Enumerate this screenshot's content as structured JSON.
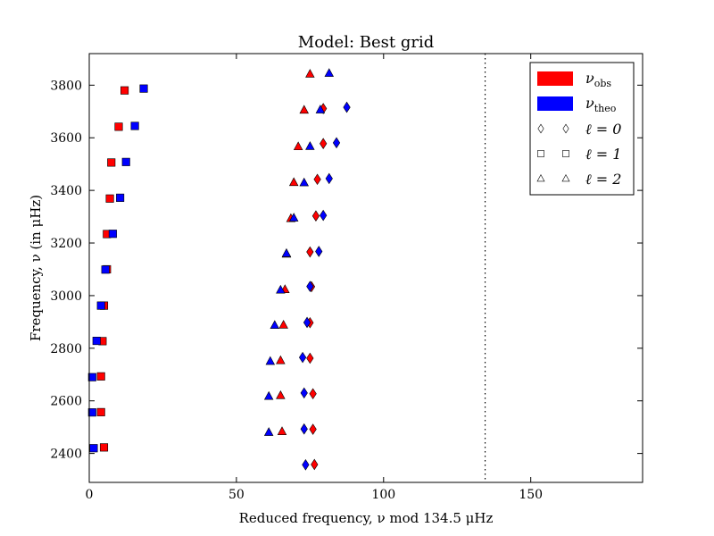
{
  "chart_data": {
    "type": "scatter",
    "title": "Model: Best grid",
    "xlabel": "Reduced frequency, ν mod 134.5 μHz",
    "ylabel": "Frequency, ν (in μHz)",
    "xlim": [
      0,
      188
    ],
    "ylim": [
      2290,
      3920
    ],
    "xticks": [
      0,
      50,
      100,
      150
    ],
    "yticks": [
      2400,
      2600,
      2800,
      3000,
      3200,
      3400,
      3600,
      3800
    ],
    "grid": false,
    "legend_placement": "top-right",
    "reference_line": {
      "x": 134.5,
      "style": "dotted"
    },
    "colors": {
      "obs": "#ff0000",
      "theo": "#0000ff"
    },
    "legend": [
      {
        "kind": "color",
        "label": "ν",
        "sub": "obs",
        "color": "#ff0000"
      },
      {
        "kind": "color",
        "label": "ν",
        "sub": "theo",
        "color": "#0000ff"
      },
      {
        "kind": "marker",
        "marker": "diamond",
        "label": "ℓ = 0"
      },
      {
        "kind": "marker",
        "marker": "square",
        "label": "ℓ = 1"
      },
      {
        "kind": "marker",
        "marker": "triangle",
        "label": "ℓ = 2"
      }
    ],
    "series": [
      {
        "source": "obs",
        "degree": 0,
        "marker": "diamond",
        "color": "#ff0000",
        "points": [
          [
            76.5,
            2358
          ],
          [
            76,
            2492
          ],
          [
            76,
            2627
          ],
          [
            75,
            2762
          ],
          [
            75,
            2897
          ],
          [
            75.5,
            3034
          ],
          [
            75,
            3166
          ],
          [
            77,
            3303
          ],
          [
            77.5,
            3442
          ],
          [
            79.5,
            3578
          ],
          [
            79.5,
            3711
          ]
        ]
      },
      {
        "source": "theo",
        "degree": 0,
        "marker": "diamond",
        "color": "#0000ff",
        "points": [
          [
            73.5,
            2357
          ],
          [
            73,
            2493
          ],
          [
            73,
            2630
          ],
          [
            72.5,
            2765
          ],
          [
            74,
            2898
          ],
          [
            75,
            3035
          ],
          [
            78,
            3168
          ],
          [
            79.5,
            3305
          ],
          [
            81.5,
            3445
          ],
          [
            84,
            3581
          ],
          [
            87.5,
            3716
          ]
        ]
      },
      {
        "source": "obs",
        "degree": 1,
        "marker": "square",
        "color": "#ff0000",
        "points": [
          [
            5,
            2423
          ],
          [
            4,
            2557
          ],
          [
            4,
            2693
          ],
          [
            4.5,
            2827
          ],
          [
            5,
            2962
          ],
          [
            6,
            3100
          ],
          [
            6,
            3234
          ],
          [
            7,
            3369
          ],
          [
            7.5,
            3506
          ],
          [
            10,
            3642
          ],
          [
            12,
            3780
          ]
        ]
      },
      {
        "source": "theo",
        "degree": 1,
        "marker": "square",
        "color": "#0000ff",
        "points": [
          [
            1.5,
            2420
          ],
          [
            1,
            2556
          ],
          [
            1,
            2690
          ],
          [
            2.5,
            2828
          ],
          [
            4,
            2962
          ],
          [
            5.5,
            3099
          ],
          [
            8,
            3235
          ],
          [
            10.5,
            3372
          ],
          [
            12.5,
            3508
          ],
          [
            15.5,
            3645
          ],
          [
            18.5,
            3787
          ]
        ]
      },
      {
        "source": "obs",
        "degree": 2,
        "marker": "triangle",
        "color": "#ff0000",
        "points": [
          [
            65.5,
            2483
          ],
          [
            65,
            2620
          ],
          [
            65,
            2753
          ],
          [
            66,
            2888
          ],
          [
            66.5,
            3023
          ],
          [
            67,
            3158
          ],
          [
            68.5,
            3293
          ],
          [
            69.5,
            3430
          ],
          [
            71,
            3566
          ],
          [
            73,
            3705
          ],
          [
            75,
            3842
          ]
        ]
      },
      {
        "source": "theo",
        "degree": 2,
        "marker": "triangle",
        "color": "#0000ff",
        "points": [
          [
            61,
            2480
          ],
          [
            61,
            2617
          ],
          [
            61.5,
            2750
          ],
          [
            63,
            2887
          ],
          [
            65,
            3021
          ],
          [
            67,
            3160
          ],
          [
            69.5,
            3295
          ],
          [
            73,
            3429
          ],
          [
            75,
            3567
          ],
          [
            78.5,
            3706
          ],
          [
            81.5,
            3845
          ]
        ]
      }
    ]
  }
}
